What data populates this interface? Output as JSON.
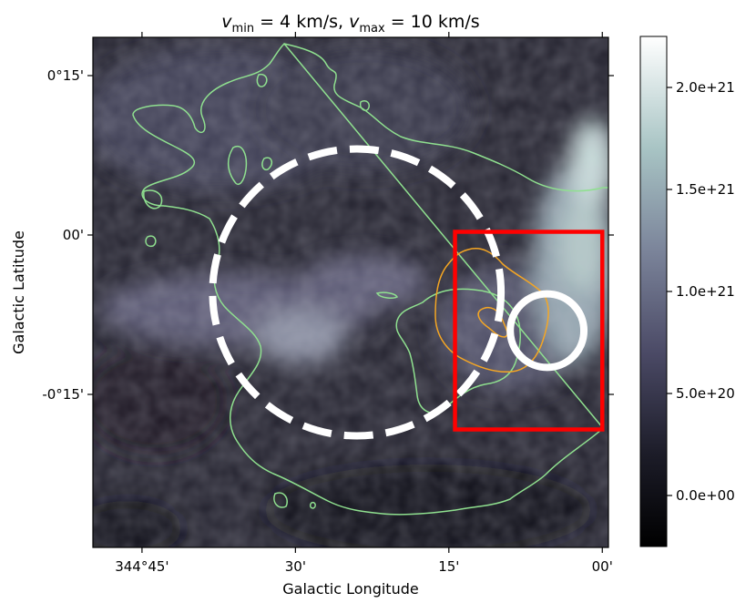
{
  "chart_data": {
    "type": "heatmap",
    "title": {
      "v_min_sym": "v",
      "v_min_sub": "min",
      "v_min_rest": " = 4 km/s, ",
      "v_max_sym": "v",
      "v_max_sub": "max",
      "v_max_rest": " = 10 km/s"
    },
    "xlabel": "Galactic Longitude",
    "ylabel": "Galactic Latitude",
    "x_ticks": [
      {
        "value": 344.75,
        "label": "344°45'"
      },
      {
        "value": 344.5,
        "label": "30'"
      },
      {
        "value": 344.25,
        "label": "15'"
      },
      {
        "value": 344.0,
        "label": "00'"
      }
    ],
    "y_ticks": [
      {
        "value": 0.25,
        "label": "0°15'"
      },
      {
        "value": 0.0,
        "label": "00'"
      },
      {
        "value": -0.25,
        "label": "-0°15'"
      }
    ],
    "xlim": [
      344.83,
      343.99
    ],
    "ylim": [
      -0.49,
      0.31
    ],
    "colorbar": {
      "colormap": "bone",
      "range": [
        -2.5e+20,
        2.25e+21
      ],
      "ticks": [
        {
          "value": 0.0,
          "label": "0.0e+00"
        },
        {
          "value": 5e+20,
          "label": "5.0e+20"
        },
        {
          "value": 1e+21,
          "label": "1.0e+21"
        },
        {
          "value": 1.5e+21,
          "label": "1.5e+21"
        },
        {
          "value": 2e+21,
          "label": "2.0e+21"
        }
      ]
    },
    "overlays": [
      {
        "kind": "ellipse",
        "style": "dashed",
        "color": "#ffffff",
        "center": [
          344.4,
          -0.09
        ],
        "half_width_deg": 0.235,
        "half_height_deg": 0.225
      },
      {
        "kind": "rectangle",
        "color": "#ff0000",
        "x_range": [
          344.0,
          344.24
        ],
        "y_range": [
          -0.305,
          0.005
        ]
      },
      {
        "kind": "circle",
        "color": "#ffffff",
        "center": [
          344.09,
          -0.15
        ],
        "radius_deg": 0.06
      },
      {
        "kind": "contour",
        "color": "#f5a623",
        "level": "inner"
      },
      {
        "kind": "contour",
        "color": "#8fe08f",
        "level": "outer"
      }
    ],
    "colors": {
      "ellipse": "#ffffff",
      "box": "#ff0000",
      "circle": "#ffffff",
      "contour_green": "#8fe08f",
      "contour_orange": "#f5a623"
    }
  }
}
